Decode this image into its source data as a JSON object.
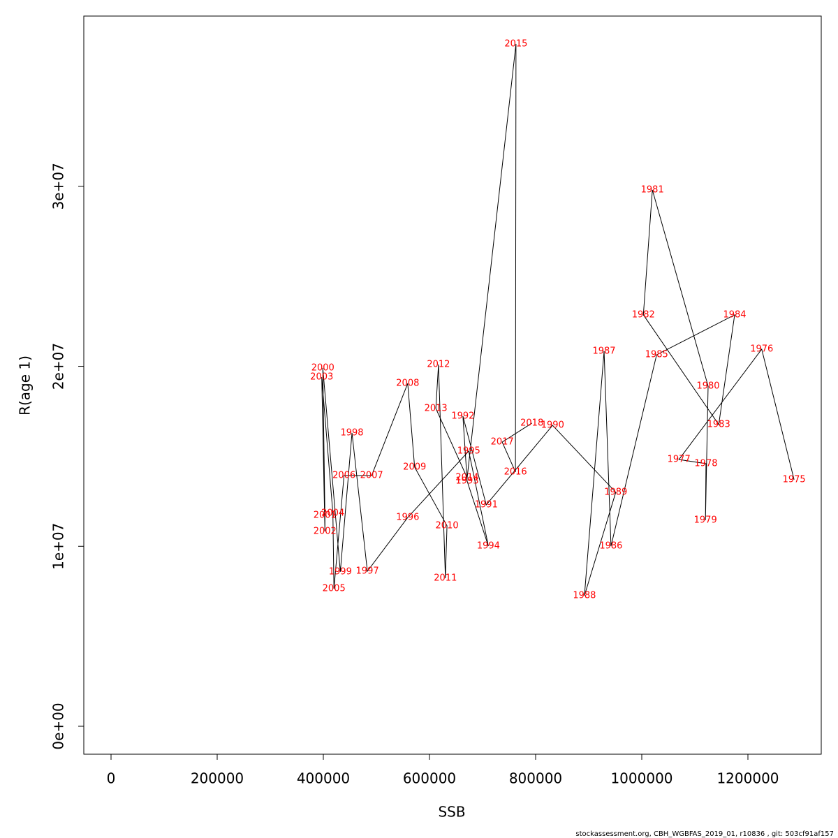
{
  "chart_data": {
    "type": "line",
    "xlabel": "SSB",
    "ylabel": "R(age 1)",
    "footer": "stockassessment.org, CBH_WGBFAS_2019_01, r10836 , git: 503cf91af157",
    "line_color": "#000000",
    "label_color": "#ff0000",
    "labels": [
      "1975",
      "1976",
      "1977",
      "1978",
      "1979",
      "1980",
      "1981",
      "1982",
      "1983",
      "1984",
      "1985",
      "1986",
      "1987",
      "1988",
      "1989",
      "1990",
      "1991",
      "1992",
      "1993",
      "1994",
      "1995",
      "1996",
      "1997",
      "1998",
      "1999",
      "2000",
      "2001",
      "2002",
      "2003",
      "2004",
      "2005",
      "2006",
      "2007",
      "2008",
      "2009",
      "2010",
      "2011",
      "2012",
      "2013",
      "2014",
      "2015",
      "2016",
      "2017",
      "2018"
    ],
    "x": [
      1287000,
      1226000,
      1070000,
      1121000,
      1120000,
      1125000,
      1020000,
      1003000,
      1145000,
      1175000,
      1028000,
      942000,
      929000,
      892000,
      951000,
      832000,
      707000,
      663000,
      671000,
      711000,
      674000,
      559000,
      483000,
      454000,
      432000,
      399000,
      403000,
      403000,
      397000,
      418000,
      420000,
      439000,
      491000,
      559000,
      572000,
      633000,
      630000,
      617000,
      612000,
      671000,
      763000,
      762000,
      737000,
      793000
    ],
    "values": [
      13700000,
      20950000,
      14820000,
      14590000,
      11450000,
      18900000,
      29800000,
      22860000,
      16760000,
      22860000,
      20640000,
      10010000,
      20840000,
      7260000,
      13000000,
      16720000,
      12300000,
      17230000,
      13620000,
      10010000,
      15290000,
      11600000,
      8610000,
      16300000,
      8580000,
      19910000,
      11720000,
      10830000,
      19400000,
      11840000,
      7640000,
      13930000,
      13930000,
      19050000,
      14400000,
      11140000,
      8230000,
      20100000,
      17660000,
      13810000,
      37910000,
      14130000,
      15790000,
      16840000
    ],
    "xlim": [
      -51316,
      1338158
    ],
    "ylim": [
      -1552000,
      39460000
    ],
    "xticks": [
      0,
      200000,
      400000,
      600000,
      800000,
      1000000,
      1200000
    ],
    "yticks": [
      {
        "value": 0,
        "label": "0e+00"
      },
      {
        "value": 10000000,
        "label": "1e+07"
      },
      {
        "value": 20000000,
        "label": "2e+07"
      },
      {
        "value": 30000000,
        "label": "3e+07"
      }
    ]
  }
}
